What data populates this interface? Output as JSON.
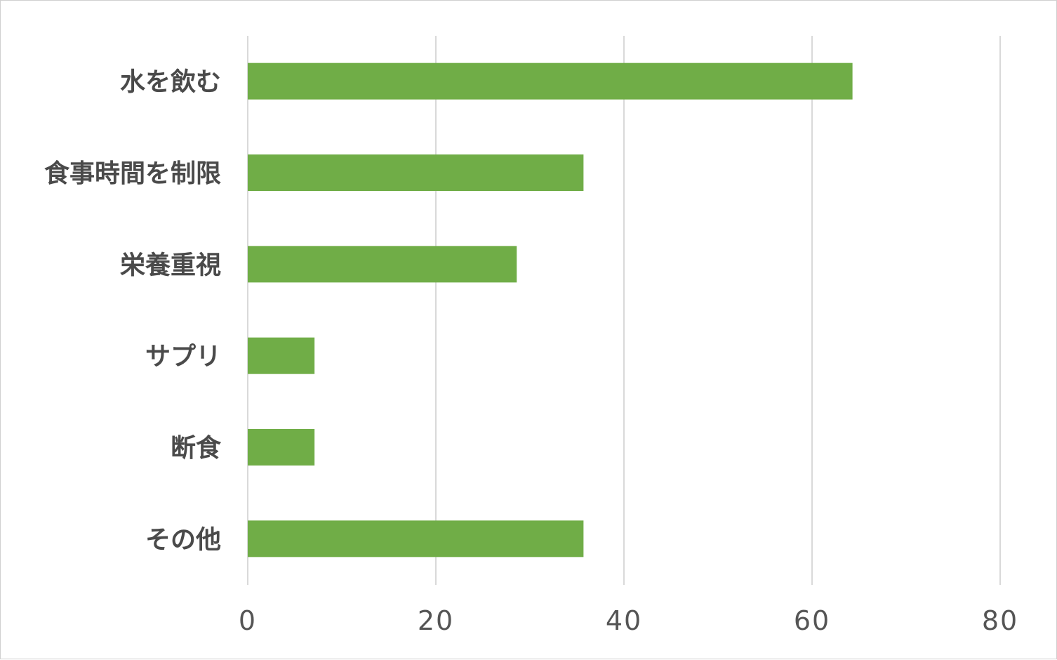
{
  "chart_data": {
    "type": "bar",
    "orientation": "horizontal",
    "categories": [
      "水を飲む",
      "食事時間を制限",
      "栄養重視",
      "サプリ",
      "断食",
      "その他"
    ],
    "values": [
      64.3,
      35.7,
      28.6,
      7.1,
      7.1,
      35.7
    ],
    "xlim": [
      0,
      80
    ],
    "xticks": [
      0,
      20,
      40,
      60,
      80
    ],
    "tick_labels": [
      "0",
      "20",
      "40",
      "60",
      "80"
    ],
    "grid": true,
    "legend": "none",
    "title": "",
    "xlabel": "",
    "ylabel": "",
    "colors": {
      "bar": "#70ad47",
      "grid": "#d9d9d9",
      "text": "#4a4a4a",
      "border": "#d0d0d0"
    }
  }
}
